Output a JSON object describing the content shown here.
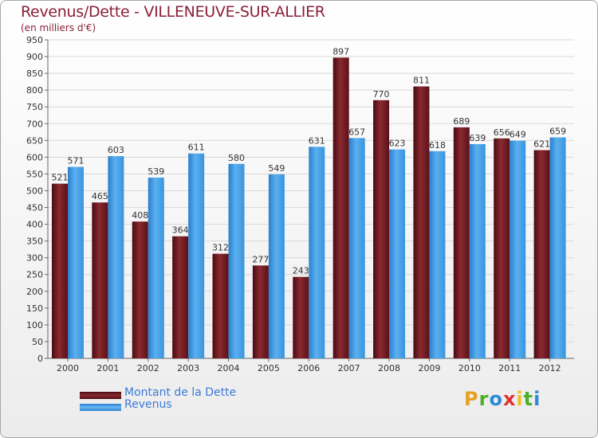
{
  "title": "Revenus/Dette - VILLENEUVE-SUR-ALLIER",
  "subtitle": "(en milliers d'€)",
  "logo": {
    "text": "Proxiti",
    "letters": [
      "P",
      "r",
      "o",
      "x",
      "i",
      "t",
      "i"
    ],
    "colors": [
      "#e8a020",
      "#4caf2a",
      "#2a8ad8",
      "#e03030",
      "#f0c020",
      "#4caf2a",
      "#2a8ad8"
    ]
  },
  "colors": {
    "dette": "#7a1a22",
    "revenus": "#3d9be0",
    "title": "#8a1e3a",
    "legend_text": "#3a7ad8"
  },
  "chart_data": {
    "type": "bar",
    "title": "Revenus/Dette - VILLENEUVE-SUR-ALLIER",
    "ylabel": "(en milliers d'€)",
    "xlabel": "",
    "ylim": [
      0,
      950
    ],
    "ytick_step": 50,
    "grid": true,
    "legend_position": "bottom-left",
    "categories": [
      "2000",
      "2001",
      "2002",
      "2003",
      "2004",
      "2005",
      "2006",
      "2007",
      "2008",
      "2009",
      "2010",
      "2011",
      "2012"
    ],
    "series": [
      {
        "name": "Montant de la Dette",
        "values": [
          521,
          465,
          408,
          364,
          312,
          277,
          243,
          897,
          770,
          811,
          689,
          656,
          621
        ]
      },
      {
        "name": "Revenus",
        "values": [
          571,
          603,
          539,
          611,
          580,
          549,
          631,
          657,
          623,
          618,
          639,
          649,
          659
        ]
      }
    ]
  }
}
